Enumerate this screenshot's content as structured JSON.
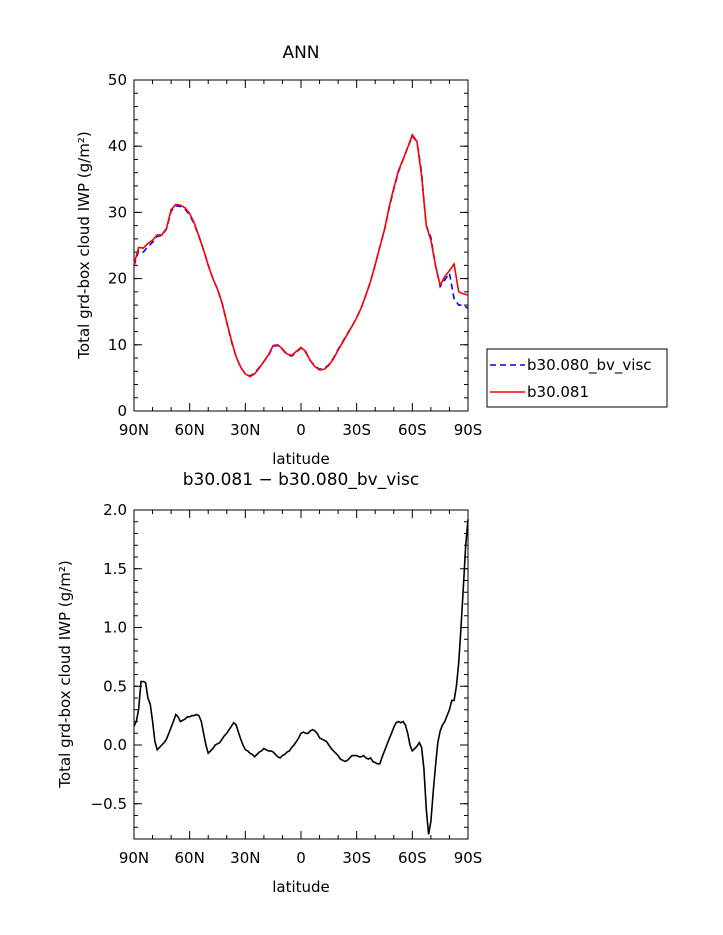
{
  "chart_data": [
    {
      "type": "line",
      "title": "ANN",
      "xlabel": "latitude",
      "ylabel": "Total grd-box cloud IWP (g/m²)",
      "xlim": [
        90,
        -90
      ],
      "ylim": [
        0,
        50
      ],
      "xticks": [
        90,
        60,
        30,
        0,
        -30,
        -60,
        -90
      ],
      "xtick_labels": [
        "90N",
        "60N",
        "30N",
        "0",
        "30S",
        "60S",
        "90S"
      ],
      "yticks": [
        0,
        10,
        20,
        30,
        40,
        50
      ],
      "ytick_labels": [
        "0",
        "10",
        "20",
        "30",
        "40",
        "50"
      ],
      "legend": "right",
      "x": [
        90,
        87.5,
        85,
        82.5,
        80,
        77.5,
        75,
        72.5,
        70,
        67.5,
        65,
        62.5,
        60,
        57.5,
        55,
        52.5,
        50,
        47.5,
        45,
        42.5,
        40,
        37.5,
        35,
        32.5,
        30,
        27.5,
        25,
        22.5,
        20,
        17.5,
        15,
        12.5,
        10,
        7.5,
        5,
        2.5,
        0,
        -2.5,
        -5,
        -7.5,
        -10,
        -12.5,
        -15,
        -17.5,
        -20,
        -22.5,
        -25,
        -27.5,
        -30,
        -32.5,
        -35,
        -37.5,
        -40,
        -42.5,
        -45,
        -47.5,
        -50,
        -52.5,
        -55,
        -57.5,
        -60,
        -62.5,
        -65,
        -66.5,
        -67.5,
        -70,
        -72.5,
        -75,
        -77.5,
        -80,
        -82.5,
        -85,
        -87.5,
        -90
      ],
      "series": [
        {
          "name": "b30.080_bv_visc",
          "color": "#0000ff",
          "dash": "dashed",
          "values": [
            21.9,
            24.2,
            24.0,
            24.8,
            25.5,
            26.4,
            26.5,
            27.5,
            30.2,
            31.0,
            30.9,
            30.5,
            29.6,
            28.2,
            26.4,
            24.3,
            22.1,
            20.0,
            18.4,
            16.3,
            13.3,
            10.5,
            8.2,
            6.6,
            5.6,
            5.3,
            5.7,
            6.6,
            7.5,
            8.4,
            9.8,
            9.9,
            9.3,
            8.5,
            8.3,
            8.9,
            9.5,
            8.9,
            7.6,
            6.8,
            6.3,
            6.4,
            7.0,
            8.0,
            9.3,
            10.5,
            11.7,
            12.8,
            14.1,
            15.6,
            17.5,
            19.6,
            22.1,
            24.8,
            27.4,
            30.6,
            33.5,
            36.1,
            38.0,
            39.8,
            41.5,
            40.7,
            36.0,
            31.0,
            28.0,
            26.2,
            22.0,
            18.8,
            19.8,
            20.8,
            17.0,
            16.0,
            16.0,
            15.5
          ]
        },
        {
          "name": "b30.081",
          "color": "#ff0000",
          "dash": "solid",
          "values": [
            22.1,
            24.7,
            24.6,
            25.3,
            25.8,
            26.6,
            26.6,
            27.6,
            30.4,
            31.2,
            31.1,
            30.7,
            29.8,
            28.4,
            26.4,
            24.3,
            22.0,
            20.0,
            18.4,
            16.3,
            13.4,
            10.7,
            8.2,
            6.6,
            5.6,
            5.2,
            5.6,
            6.5,
            7.5,
            8.5,
            9.9,
            10.0,
            9.4,
            8.6,
            8.4,
            9.0,
            9.6,
            9.0,
            7.6,
            6.7,
            6.2,
            6.3,
            6.9,
            7.9,
            9.2,
            10.4,
            11.6,
            12.8,
            14.1,
            15.6,
            17.5,
            19.6,
            22.1,
            24.8,
            27.4,
            30.8,
            33.7,
            36.3,
            38.0,
            39.8,
            41.7,
            40.7,
            35.5,
            31.0,
            28.0,
            25.8,
            22.0,
            19.0,
            20.3,
            21.2,
            22.2,
            18.0,
            17.7,
            17.5
          ]
        }
      ]
    },
    {
      "type": "line",
      "title": "b30.081 − b30.080_bv_visc",
      "xlabel": "latitude",
      "ylabel": "Total grd-box cloud IWP (g/m²)",
      "xlim": [
        90,
        -90
      ],
      "ylim": [
        -0.8,
        2.0
      ],
      "xticks": [
        90,
        60,
        30,
        0,
        -30,
        -60,
        -90
      ],
      "xtick_labels": [
        "90N",
        "60N",
        "30N",
        "0",
        "30S",
        "60S",
        "90S"
      ],
      "yticks": [
        -0.5,
        0.0,
        0.5,
        1.0,
        1.5,
        2.0
      ],
      "ytick_labels": [
        "−0.5",
        "0.0",
        "0.5",
        "1.0",
        "1.5",
        "2.0"
      ],
      "legend": "none",
      "x": [
        90,
        88.75,
        87.5,
        86.25,
        85,
        83.75,
        82.5,
        81.25,
        80,
        78.75,
        77.5,
        76.25,
        75,
        73.75,
        72.5,
        71.25,
        70,
        68.75,
        67.5,
        66.25,
        65,
        63.75,
        62.5,
        61.25,
        60,
        58.75,
        57.5,
        56.25,
        55,
        53.75,
        52.5,
        51.25,
        50,
        48.75,
        47.5,
        46.25,
        45,
        43.75,
        42.5,
        41.25,
        40,
        38.75,
        37.5,
        36.25,
        35,
        33.75,
        32.5,
        31.25,
        30,
        28.75,
        27.5,
        26.25,
        25,
        23.75,
        22.5,
        21.25,
        20,
        18.75,
        17.5,
        16.25,
        15,
        13.75,
        12.5,
        11.25,
        10,
        8.75,
        7.5,
        6.25,
        5,
        3.75,
        2.5,
        1.25,
        0,
        -1.25,
        -2.5,
        -3.75,
        -5,
        -6.25,
        -7.5,
        -8.75,
        -10,
        -11.25,
        -12.5,
        -13.75,
        -15,
        -16.25,
        -17.5,
        -18.75,
        -20,
        -21.25,
        -22.5,
        -23.75,
        -25,
        -26.25,
        -27.5,
        -28.75,
        -30,
        -31.25,
        -32.5,
        -33.75,
        -35,
        -36.25,
        -37.5,
        -38.75,
        -40,
        -41.25,
        -42.5,
        -43.75,
        -45,
        -46.25,
        -47.5,
        -48.75,
        -50,
        -51.25,
        -52.5,
        -53.75,
        -55,
        -56.25,
        -57.5,
        -58.75,
        -60,
        -61.25,
        -62.5,
        -63.75,
        -65,
        -66.25,
        -67.5,
        -68.75,
        -70,
        -71.25,
        -72.5,
        -73.75,
        -75,
        -76.25,
        -77.5,
        -78.75,
        -80,
        -81.25,
        -82.5,
        -83.75,
        -85,
        -86.25,
        -87.5,
        -88.75,
        -90
      ],
      "values": [
        0.16,
        0.2,
        0.3,
        0.54,
        0.54,
        0.53,
        0.4,
        0.35,
        0.2,
        0.03,
        -0.04,
        -0.02,
        0.0,
        0.02,
        0.05,
        0.1,
        0.15,
        0.2,
        0.26,
        0.24,
        0.2,
        0.21,
        0.22,
        0.24,
        0.24,
        0.25,
        0.25,
        0.26,
        0.25,
        0.2,
        0.1,
        0.0,
        -0.07,
        -0.05,
        -0.03,
        0.0,
        0.01,
        0.02,
        0.05,
        0.08,
        0.1,
        0.13,
        0.16,
        0.19,
        0.17,
        0.11,
        0.05,
        0.0,
        -0.04,
        -0.05,
        -0.07,
        -0.08,
        -0.1,
        -0.08,
        -0.06,
        -0.05,
        -0.03,
        -0.04,
        -0.05,
        -0.05,
        -0.06,
        -0.08,
        -0.1,
        -0.11,
        -0.09,
        -0.08,
        -0.06,
        -0.05,
        -0.02,
        0.0,
        0.03,
        0.06,
        0.1,
        0.11,
        0.1,
        0.1,
        0.12,
        0.13,
        0.12,
        0.1,
        0.06,
        0.05,
        0.04,
        0.03,
        0.0,
        -0.03,
        -0.05,
        -0.07,
        -0.09,
        -0.12,
        -0.13,
        -0.14,
        -0.13,
        -0.11,
        -0.09,
        -0.09,
        -0.09,
        -0.1,
        -0.1,
        -0.09,
        -0.11,
        -0.12,
        -0.11,
        -0.14,
        -0.15,
        -0.16,
        -0.16,
        -0.1,
        -0.05,
        0.0,
        0.05,
        0.1,
        0.15,
        0.19,
        0.2,
        0.19,
        0.2,
        0.17,
        0.1,
        0.0,
        -0.05,
        -0.03,
        -0.01,
        0.02,
        -0.02,
        -0.2,
        -0.55,
        -0.76,
        -0.65,
        -0.4,
        -0.18,
        0.02,
        0.12,
        0.17,
        0.2,
        0.25,
        0.3,
        0.38,
        0.38,
        0.5,
        0.7,
        1.0,
        1.35,
        1.7,
        1.92
      ]
    }
  ]
}
